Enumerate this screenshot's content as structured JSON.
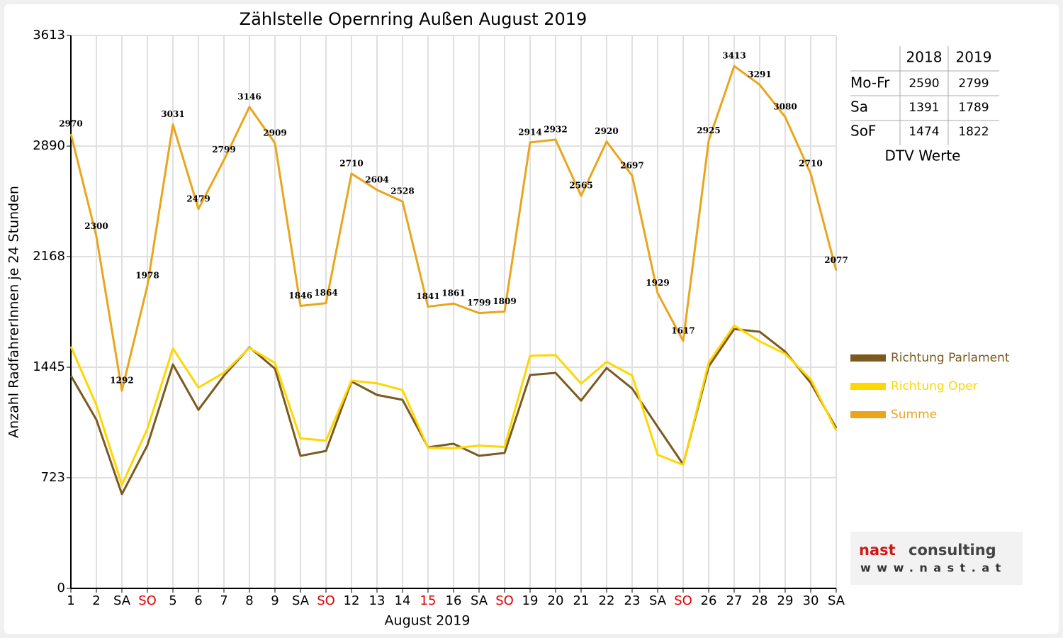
{
  "chart_data": {
    "type": "line",
    "title": "Zählstelle Opernring Außen August 2019",
    "x_label": "August 2019",
    "y_label": "Anzahl RadfahrerInnen je 24 Stunden",
    "categories": [
      "1",
      "2",
      "SA",
      "SO",
      "5",
      "6",
      "7",
      "8",
      "9",
      "SA",
      "SO",
      "12",
      "13",
      "14",
      "15",
      "16",
      "SA",
      "SO",
      "19",
      "20",
      "21",
      "22",
      "23",
      "SA",
      "SO",
      "26",
      "27",
      "28",
      "29",
      "30",
      "SA"
    ],
    "category_colors": [
      "#000000",
      "#000000",
      "#000000",
      "#e00000",
      "#000000",
      "#000000",
      "#000000",
      "#000000",
      "#000000",
      "#000000",
      "#e00000",
      "#000000",
      "#000000",
      "#000000",
      "#e00000",
      "#000000",
      "#000000",
      "#e00000",
      "#000000",
      "#000000",
      "#000000",
      "#000000",
      "#000000",
      "#000000",
      "#e00000",
      "#000000",
      "#000000",
      "#000000",
      "#000000",
      "#000000",
      "#000000"
    ],
    "ylim": [
      0,
      3613
    ],
    "yticks": [
      0,
      723,
      1445,
      2168,
      2890,
      3613
    ],
    "grid": true,
    "legend": "right",
    "series": [
      {
        "name": "Richtung Parlament",
        "color": "#7a5a1e",
        "values": [
          1390,
          1102,
          616,
          935,
          1463,
          1167,
          1390,
          1575,
          1436,
          866,
          898,
          1352,
          1264,
          1232,
          922,
          945,
          866,
          885,
          1394,
          1408,
          1227,
          1440,
          1306,
          1056,
          810,
          1450,
          1695,
          1677,
          1547,
          1343,
          1047
        ]
      },
      {
        "name": "Richtung Oper",
        "color": "#ffd700",
        "values": [
          1580,
          1198,
          676,
          1043,
          1568,
          1312,
          1409,
          1571,
          1473,
          980,
          966,
          1358,
          1340,
          1296,
          919,
          916,
          933,
          924,
          1520,
          1524,
          1338,
          1480,
          1391,
          873,
          807,
          1475,
          1718,
          1614,
          1533,
          1367,
          1030
        ]
      },
      {
        "name": "Summe",
        "color": "#eaa51c",
        "data_labels": true,
        "values": [
          2970,
          2300,
          1292,
          1978,
          3031,
          2479,
          2799,
          3146,
          2909,
          1846,
          1864,
          2710,
          2604,
          2528,
          1841,
          1861,
          1799,
          1809,
          2914,
          2932,
          2565,
          2920,
          2697,
          1929,
          1617,
          2925,
          3413,
          3291,
          3080,
          2710,
          2077
        ]
      }
    ]
  },
  "table": {
    "caption": "DTV Werte",
    "header": [
      "2018",
      "2019"
    ],
    "rows": [
      [
        "Mo-Fr",
        "2590",
        "2799"
      ],
      [
        "Sa",
        "1391",
        "1789"
      ],
      [
        "SoF",
        "1474",
        "1822"
      ]
    ]
  },
  "logo": {
    "brand": "nast",
    "brand_rest": "consulting",
    "url": "www.nast.at"
  }
}
